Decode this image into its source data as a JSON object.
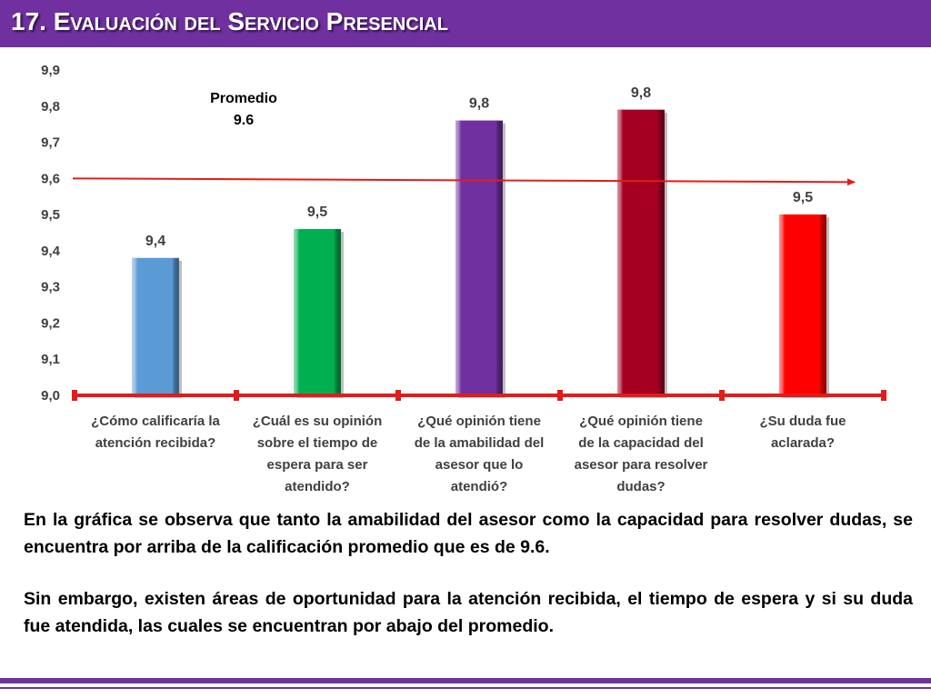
{
  "header": {
    "title": "17. Evaluación del Servicio Presencial"
  },
  "chart_data": {
    "type": "bar",
    "categories": [
      [
        "¿Cómo calificaría la",
        "atención recibida?"
      ],
      [
        "¿Cuál es su opinión",
        "sobre el tiempo de",
        "espera para ser",
        "atendido?"
      ],
      [
        "¿Qué opinión tiene",
        "de la amabilidad del",
        "asesor que lo",
        "atendió?"
      ],
      [
        "¿Qué opinión tiene",
        "de la capacidad del",
        "asesor para resolver",
        "dudas?"
      ],
      [
        "¿Su duda fue",
        "aclarada?"
      ]
    ],
    "values": [
      9.38,
      9.46,
      9.76,
      9.79,
      9.5
    ],
    "value_labels": [
      "9,4",
      "9,5",
      "9,8",
      "9,8",
      "9,5"
    ],
    "colors": [
      "#5b9bd5",
      "#00b050",
      "#7030a0",
      "#a50021",
      "#ff0000"
    ],
    "ylim": [
      9.0,
      9.9
    ],
    "yticks": [
      "9,0",
      "9,1",
      "9,2",
      "9,3",
      "9,4",
      "9,5",
      "9,6",
      "9,7",
      "9,8",
      "9,9"
    ],
    "average": {
      "value": 9.6,
      "label_lines": [
        "Promedio",
        "9.6"
      ],
      "color": "#e41b1b"
    },
    "axis_color": "#e41b1b",
    "grid": false
  },
  "summary": {
    "paragraph1": "En la gráfica se observa que tanto la amabilidad del asesor como la capacidad para resolver dudas, se encuentra por arriba de la calificación promedio que es de 9.6.",
    "paragraph2": "Sin embargo, existen áreas de oportunidad para la atención recibida, el tiempo de espera y si su duda fue atendida, las cuales se encuentran por abajo del promedio."
  }
}
